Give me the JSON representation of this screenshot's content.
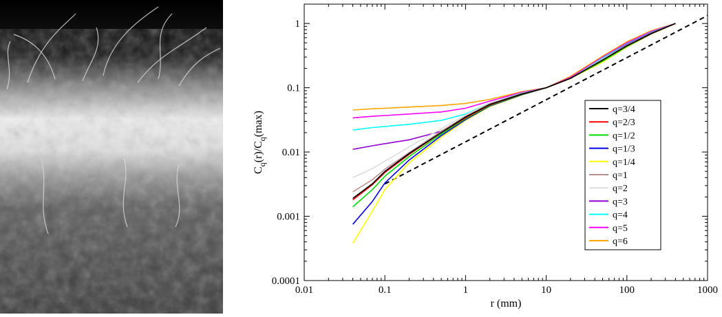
{
  "chart_data": {
    "type": "line",
    "title": "",
    "xlabel": "r (mm)",
    "ylabel_main": "C",
    "ylabel_parts": [
      "C",
      "q",
      "(r)/C",
      "q",
      "(max)"
    ],
    "xscale": "log",
    "yscale": "log",
    "xlim": [
      0.01,
      1000
    ],
    "ylim": [
      0.0001,
      2
    ],
    "xticks": [
      0.01,
      0.1,
      1,
      10,
      100,
      1000
    ],
    "xticklabels": [
      "0.01",
      "0.1",
      "1",
      "10",
      "100",
      "1000"
    ],
    "yticks": [
      0.0001,
      0.001,
      0.01,
      0.1,
      1
    ],
    "yticklabels": [
      "0.0001",
      "0.001",
      "0.01",
      "0.1",
      "1"
    ],
    "grid": false,
    "legend_position": "right-center",
    "reference_line": {
      "style": "dashed",
      "color": "#000000",
      "x": [
        0.1,
        1000
      ],
      "y": [
        0.00319,
        1.33
      ]
    },
    "series": [
      {
        "name": "q=3/4",
        "color": "#000000",
        "x": [
          0.04,
          0.07,
          0.1,
          0.2,
          0.5,
          1,
          2,
          5,
          10,
          20,
          50,
          100,
          200,
          400
        ],
        "y": [
          0.0019,
          0.0032,
          0.005,
          0.0095,
          0.02,
          0.035,
          0.055,
          0.08,
          0.1,
          0.14,
          0.27,
          0.45,
          0.7,
          1.0
        ]
      },
      {
        "name": "q=2/3",
        "color": "#ff0000",
        "x": [
          0.04,
          0.07,
          0.1,
          0.2,
          0.5,
          1,
          2,
          5,
          10,
          20,
          50,
          100,
          200,
          400
        ],
        "y": [
          0.0018,
          0.0031,
          0.0048,
          0.0092,
          0.02,
          0.034,
          0.054,
          0.08,
          0.1,
          0.14,
          0.27,
          0.45,
          0.7,
          1.0
        ]
      },
      {
        "name": "q=1/2",
        "color": "#00dd00",
        "x": [
          0.04,
          0.07,
          0.1,
          0.2,
          0.5,
          1,
          2,
          5,
          10,
          20,
          50,
          100,
          200,
          400
        ],
        "y": [
          0.0014,
          0.0026,
          0.0042,
          0.0085,
          0.019,
          0.033,
          0.053,
          0.079,
          0.1,
          0.14,
          0.26,
          0.44,
          0.7,
          1.0
        ]
      },
      {
        "name": "q=1/3",
        "color": "#0000ee",
        "x": [
          0.04,
          0.07,
          0.1,
          0.2,
          0.5,
          1,
          2,
          5,
          10,
          20,
          50,
          100,
          200,
          400
        ],
        "y": [
          0.00075,
          0.0017,
          0.0033,
          0.0075,
          0.018,
          0.032,
          0.052,
          0.078,
          0.1,
          0.14,
          0.26,
          0.44,
          0.69,
          1.0
        ]
      },
      {
        "name": "q=1/4",
        "color": "#ffff00",
        "x": [
          0.04,
          0.07,
          0.1,
          0.2,
          0.5,
          1,
          2,
          5,
          10,
          20,
          50,
          100,
          200,
          400
        ],
        "y": [
          0.00038,
          0.0012,
          0.0026,
          0.0068,
          0.017,
          0.031,
          0.051,
          0.077,
          0.1,
          0.14,
          0.25,
          0.43,
          0.68,
          1.0
        ]
      },
      {
        "name": "q=1",
        "color": "#bc8f8f",
        "x": [
          0.04,
          0.07,
          0.1,
          0.2,
          0.5,
          1,
          2,
          5,
          10,
          20,
          50,
          100,
          200,
          400
        ],
        "y": [
          0.0024,
          0.0037,
          0.0054,
          0.0098,
          0.021,
          0.036,
          0.056,
          0.081,
          0.1,
          0.14,
          0.27,
          0.45,
          0.7,
          1.0
        ]
      },
      {
        "name": "q=2",
        "color": "#dcdcdc",
        "x": [
          0.04,
          0.07,
          0.1,
          0.2,
          0.5,
          1,
          2,
          5,
          10,
          20,
          50,
          100,
          200,
          400
        ],
        "y": [
          0.004,
          0.0055,
          0.0072,
          0.012,
          0.023,
          0.038,
          0.058,
          0.082,
          0.1,
          0.14,
          0.28,
          0.46,
          0.71,
          1.0
        ]
      },
      {
        "name": "q=3",
        "color": "#9400d3",
        "x": [
          0.04,
          0.07,
          0.1,
          0.2,
          0.5,
          1,
          2,
          5,
          10,
          20,
          50,
          100,
          200,
          400
        ],
        "y": [
          0.011,
          0.0125,
          0.0135,
          0.0155,
          0.021,
          0.035,
          0.056,
          0.082,
          0.1,
          0.14,
          0.28,
          0.47,
          0.72,
          1.0
        ]
      },
      {
        "name": "q=4",
        "color": "#00ffff",
        "x": [
          0.04,
          0.07,
          0.1,
          0.2,
          0.5,
          1,
          2,
          5,
          10,
          20,
          50,
          100,
          200,
          400
        ],
        "y": [
          0.022,
          0.024,
          0.025,
          0.027,
          0.031,
          0.039,
          0.058,
          0.083,
          0.1,
          0.14,
          0.29,
          0.48,
          0.73,
          1.0
        ]
      },
      {
        "name": "q=5",
        "color": "#ff00ff",
        "x": [
          0.04,
          0.07,
          0.1,
          0.2,
          0.5,
          1,
          2,
          5,
          10,
          20,
          50,
          100,
          200,
          400
        ],
        "y": [
          0.034,
          0.036,
          0.037,
          0.039,
          0.042,
          0.048,
          0.062,
          0.085,
          0.1,
          0.145,
          0.3,
          0.5,
          0.75,
          1.0
        ]
      },
      {
        "name": "q=6",
        "color": "#ffa500",
        "x": [
          0.04,
          0.07,
          0.1,
          0.2,
          0.5,
          1,
          2,
          5,
          10,
          20,
          50,
          100,
          200,
          400
        ],
        "y": [
          0.045,
          0.047,
          0.048,
          0.05,
          0.053,
          0.057,
          0.066,
          0.087,
          0.1,
          0.15,
          0.31,
          0.52,
          0.77,
          1.0
        ]
      }
    ]
  }
}
